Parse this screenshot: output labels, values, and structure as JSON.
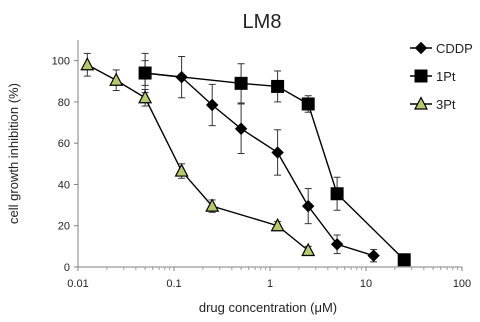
{
  "chart_data": {
    "type": "line",
    "title": "LM8",
    "xlabel": "drug concentration (μM)",
    "ylabel": "cell growth inhibition (%)",
    "x_scale": "log",
    "xlim": [
      0.01,
      100
    ],
    "ylim": [
      0,
      110
    ],
    "x_ticks": [
      "0.01",
      "0.1",
      "1",
      "10",
      "100"
    ],
    "y_ticks": [
      "0",
      "20",
      "40",
      "60",
      "80",
      "100"
    ],
    "legend_position": "top-right",
    "grid": false,
    "series": [
      {
        "name": "CDDP",
        "marker": "diamond",
        "color": "#000000",
        "fill": "#000000",
        "points": [
          {
            "x": 0.05,
            "y": 94,
            "err": 6
          },
          {
            "x": 0.12,
            "y": 92,
            "err": 10
          },
          {
            "x": 0.25,
            "y": 78.5,
            "err": 10
          },
          {
            "x": 0.5,
            "y": 67,
            "err": 12
          },
          {
            "x": 1.2,
            "y": 55.5,
            "err": 11
          },
          {
            "x": 2.5,
            "y": 29.5,
            "err": 8.5
          },
          {
            "x": 5,
            "y": 11,
            "err": 4.5
          },
          {
            "x": 12,
            "y": 5.5,
            "err": 3
          }
        ]
      },
      {
        "name": "1Pt",
        "marker": "square",
        "color": "#000000",
        "fill": "#000000",
        "points": [
          {
            "x": 0.05,
            "y": 94,
            "err": 9.5
          },
          {
            "x": 0.5,
            "y": 89,
            "err": 9.5
          },
          {
            "x": 1.2,
            "y": 87.5,
            "err": 7.5
          },
          {
            "x": 2.5,
            "y": 79,
            "err": 4
          },
          {
            "x": 5,
            "y": 35.5,
            "err": 8
          },
          {
            "x": 25,
            "y": 3.5,
            "err": 0
          }
        ]
      },
      {
        "name": "3Pt",
        "marker": "triangle",
        "color": "#000000",
        "fill": "#b7c96d",
        "points": [
          {
            "x": 0.0125,
            "y": 98,
            "err": 5.5
          },
          {
            "x": 0.025,
            "y": 90.5,
            "err": 5
          },
          {
            "x": 0.05,
            "y": 82,
            "err": 4
          },
          {
            "x": 0.12,
            "y": 46.5,
            "err": 3.5
          },
          {
            "x": 0.25,
            "y": 29.5,
            "err": 3
          },
          {
            "x": 1.2,
            "y": 20,
            "err": 2
          },
          {
            "x": 2.5,
            "y": 8,
            "err": 2
          }
        ]
      }
    ]
  }
}
